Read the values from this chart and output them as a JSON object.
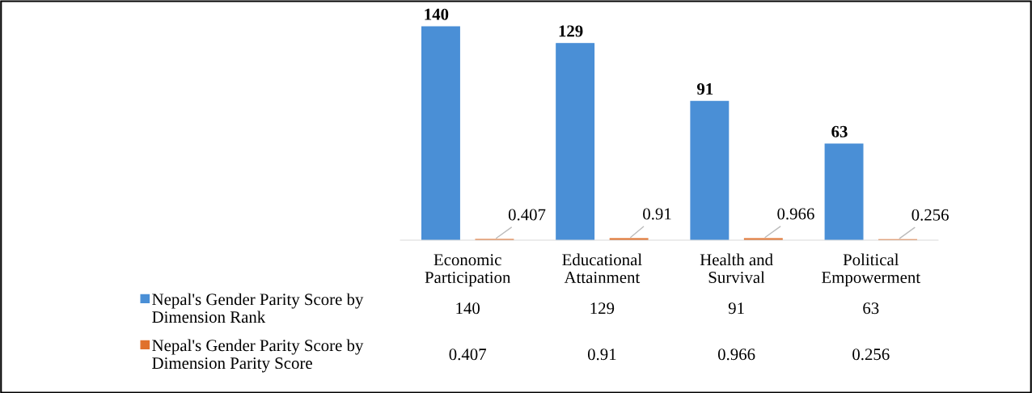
{
  "chart_data": {
    "type": "bar",
    "categories": [
      "Economic\nParticipation",
      "Educational\nAttainment",
      "Health and\nSurvival",
      "Political\nEmpowerment"
    ],
    "series": [
      {
        "name": "Nepal's Gender Parity Score by\nDimension Rank",
        "color": "#4a8fd6",
        "values": [
          140,
          129,
          91,
          63
        ],
        "value_labels": [
          "140",
          "129",
          "91",
          "63"
        ]
      },
      {
        "name": "Nepal's Gender Parity Score by\nDimension Parity Score",
        "color": "#e0712c",
        "values": [
          0.407,
          0.91,
          0.966,
          0.256
        ],
        "value_labels": [
          "0.407",
          "0.91",
          "0.966",
          "0.256"
        ]
      }
    ],
    "annotations": [
      "140",
      "129",
      "91",
      "63",
      "0.407",
      "0.91",
      "0.966",
      "0.256"
    ],
    "legend": "bottom left",
    "tick_labels": "x",
    "grid": false
  }
}
